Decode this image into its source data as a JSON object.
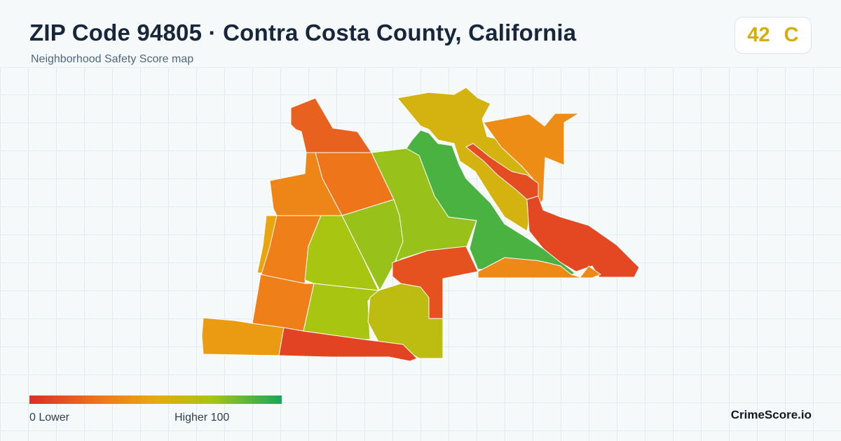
{
  "header": {
    "title": "ZIP Code 94805 · Contra Costa County, California",
    "subtitle": "Neighborhood Safety Score map"
  },
  "score_badge": {
    "score": "42",
    "grade": "C",
    "color": "#d8ac0a"
  },
  "map": {
    "regions": [
      {
        "name": "region-nw-tip",
        "score": 20
      },
      {
        "name": "region-west-strip",
        "score": 48
      },
      {
        "name": "region-north-central",
        "score": 28
      },
      {
        "name": "region-west-upper",
        "score": 35
      },
      {
        "name": "region-central-north",
        "score": 75
      },
      {
        "name": "region-ridge-east",
        "score": 90
      },
      {
        "name": "region-north-hills",
        "score": 57
      },
      {
        "name": "region-ne-corner",
        "score": 38
      },
      {
        "name": "region-creek-strip",
        "score": 12
      },
      {
        "name": "region-east-lowland",
        "score": 10
      },
      {
        "name": "region-west-mid",
        "score": 32
      },
      {
        "name": "region-central",
        "score": 72
      },
      {
        "name": "region-central-east",
        "score": 75
      },
      {
        "name": "region-south-west-inner",
        "score": 32
      },
      {
        "name": "region-south-central",
        "score": 72
      },
      {
        "name": "region-south-east",
        "score": 65
      },
      {
        "name": "region-east-pocket",
        "score": 14
      },
      {
        "name": "region-east-bottom",
        "score": 36
      },
      {
        "name": "region-far-sw",
        "score": 44
      },
      {
        "name": "region-south-band",
        "score": 8
      }
    ]
  },
  "legend": {
    "min_label": "0  Lower",
    "max_label": "Higher  100",
    "color_low": "#dc2f26",
    "color_mid1": "#f07a1a",
    "color_mid2": "#e8a90f",
    "color_mid3": "#a8c512",
    "color_high": "#16a85a"
  },
  "brand": "CrimeScore.io"
}
